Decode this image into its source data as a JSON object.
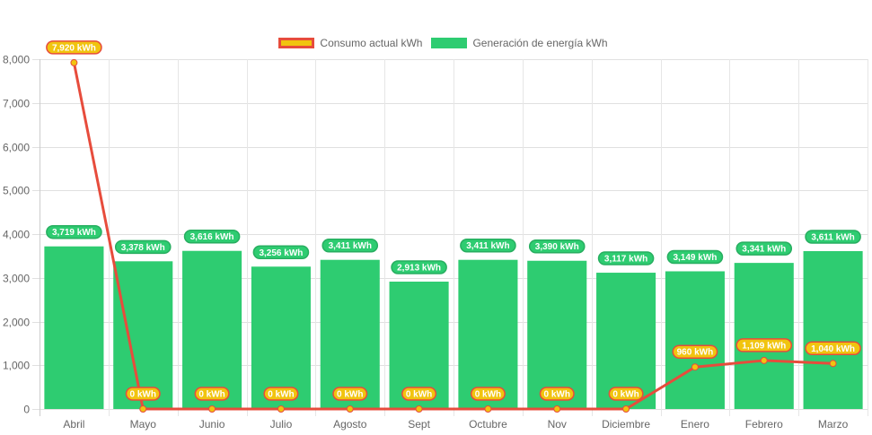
{
  "chart_data": {
    "type": "bar",
    "title": "",
    "xlabel": "",
    "ylabel": "",
    "ylim": [
      0,
      8000
    ],
    "yticks": [
      0,
      1000,
      2000,
      3000,
      4000,
      5000,
      6000,
      7000,
      8000
    ],
    "ytick_labels": [
      "0",
      "1,000",
      "2,000",
      "3,000",
      "4,000",
      "5,000",
      "6,000",
      "7,000",
      "8,000"
    ],
    "grid": true,
    "legend_position": "top",
    "categories": [
      "Abril",
      "Mayo",
      "Junio",
      "Julio",
      "Agosto",
      "Sept",
      "Octubre",
      "Nov",
      "Diciembre",
      "Enero",
      "Febrero",
      "Marzo"
    ],
    "series": [
      {
        "name": "Consumo actual kWh",
        "type": "line",
        "color": "#e74c3c",
        "point_color": "#f1c40f",
        "values": [
          7920,
          0,
          0,
          0,
          0,
          0,
          0,
          0,
          0,
          960,
          1109,
          1040
        ],
        "labels": [
          "7,920 kWh",
          "0 kWh",
          "0 kWh",
          "0 kWh",
          "0 kWh",
          "0 kWh",
          "0 kWh",
          "0 kWh",
          "0 kWh",
          "960 kWh",
          "1,109 kWh",
          "1,040 kWh"
        ]
      },
      {
        "name": "Generación de energía kWh",
        "type": "bar",
        "color": "#2ecc71",
        "values": [
          3719,
          3378,
          3616,
          3256,
          3411,
          2913,
          3411,
          3390,
          3117,
          3149,
          3341,
          3611
        ],
        "labels": [
          "3,719 kWh",
          "3,378 kWh",
          "3,616 kWh",
          "3,256 kWh",
          "3,411 kWh",
          "2,913 kWh",
          "3,411 kWh",
          "3,390 kWh",
          "3,117 kWh",
          "3,149 kWh",
          "3,341 kWh",
          "3,611 kWh"
        ]
      }
    ]
  },
  "legend": {
    "consumo_label": "Consumo actual kWh",
    "generacion_label": "Generación de energía kWh"
  }
}
